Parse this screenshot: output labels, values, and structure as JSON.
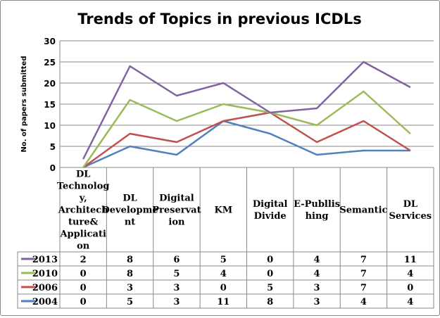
{
  "chart_data": {
    "type": "line",
    "stacked": true,
    "title": "Trends of Topics in previous ICDLs",
    "ylabel": "No. of papers submitted",
    "xlabel": "",
    "ylim": [
      0,
      30
    ],
    "yticks": [
      0,
      5,
      10,
      15,
      20,
      25,
      30
    ],
    "grid": true,
    "legend": "data-table",
    "categories": [
      "DL Technology, Architechture& Application",
      "DL Development",
      "Digital Preservation",
      "KM",
      "Digital Divide",
      "E-Publlishing",
      "Semantic",
      "DL Services"
    ],
    "series": [
      {
        "name": "2004",
        "color": "#4f81bd",
        "values": [
          0,
          5,
          3,
          11,
          8,
          3,
          4,
          4
        ]
      },
      {
        "name": "2006",
        "color": "#c0504d",
        "values": [
          0,
          3,
          3,
          0,
          5,
          3,
          7,
          0
        ]
      },
      {
        "name": "2010",
        "color": "#9bbb59",
        "values": [
          0,
          8,
          5,
          4,
          0,
          4,
          7,
          4
        ]
      },
      {
        "name": "2013",
        "color": "#8064a2",
        "values": [
          2,
          8,
          6,
          5,
          0,
          4,
          7,
          11
        ]
      }
    ]
  }
}
